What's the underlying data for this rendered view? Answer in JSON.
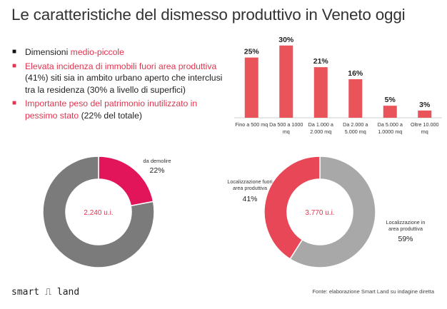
{
  "title": "Le caratteristiche del dismesso produttivo in Veneto oggi",
  "bullets": [
    {
      "marker": "■",
      "marker_color": "#111111",
      "parts": [
        {
          "text": "Dimensioni ",
          "hl": false
        },
        {
          "text": "medio-piccole",
          "hl": true
        }
      ]
    },
    {
      "marker": "■",
      "marker_color": "#e0344f",
      "parts": [
        {
          "text": "Elevata incidenza di immobili fuori area produttiva",
          "hl": true
        },
        {
          "text": " (41%) siti sia in ambito urbano aperto che interclusi tra la  residenza (30% a livello di superfici)",
          "hl": false
        }
      ]
    },
    {
      "marker": "■",
      "marker_color": "#e0344f",
      "parts": [
        {
          "text": "Importante peso del patrimonio inutilizzato in pessimo stato",
          "hl": true
        },
        {
          "text": " (22% del totale)",
          "hl": false
        }
      ]
    }
  ],
  "colors": {
    "accent": "#e0344f",
    "bar": "#e9545b",
    "dark_gray": "#7b7b7b",
    "light_gray": "#a8a8a8",
    "pink": "#e2145a",
    "red": "#e84757"
  },
  "chart_data": [
    {
      "type": "bar",
      "categories": [
        "Fino a 500 mq",
        "Da 500 a 1000 mq",
        "Da 1.000 a 2.000 mq",
        "Da 2.000 a 5.000 mq",
        "Da 5.000 a 1.0000 mq",
        "Oltre 10.000 mq"
      ],
      "category_lines": [
        [
          "Fino a 500 mq"
        ],
        [
          "Da 500 a 1000",
          "mq"
        ],
        [
          "Da 1.000 a",
          "2.000 mq"
        ],
        [
          "Da 2.000 a",
          "5.000 mq"
        ],
        [
          "Da 5.000 a",
          "1.0000 mq"
        ],
        [
          "Oltre 10.000",
          "mq"
        ]
      ],
      "values": [
        25,
        30,
        21,
        16,
        5,
        3
      ],
      "labels": [
        "25%",
        "30%",
        "21%",
        "16%",
        "5%",
        "3%"
      ],
      "unit": "%",
      "ylim": [
        0,
        32
      ],
      "title": "",
      "xlabel": "",
      "ylabel": ""
    },
    {
      "type": "pie",
      "donut": true,
      "center_label": "2.240 u.i.",
      "slices": [
        {
          "name": "da demolire",
          "value": 22,
          "label": "22%",
          "color": "#e2145a"
        },
        {
          "name": "",
          "value": 78,
          "label": "",
          "color": "#7b7b7b"
        }
      ]
    },
    {
      "type": "pie",
      "donut": true,
      "center_label": "3.770 u.i.",
      "slices": [
        {
          "name": "Localizzazione in area produttiva",
          "name_lines": [
            "Localizzazione in",
            "area produttiva"
          ],
          "value": 59,
          "label": "59%",
          "color": "#a8a8a8"
        },
        {
          "name": "Localizzazione fuori area produttiva",
          "name_lines": [
            "Localizzazione fuori",
            "area produttiva"
          ],
          "value": 41,
          "label": "41%",
          "color": "#e84757"
        }
      ]
    }
  ],
  "footer": {
    "logo": "smart ⎍ land",
    "source": "Fonte: elaborazione Smart Land su indagine diretta"
  }
}
